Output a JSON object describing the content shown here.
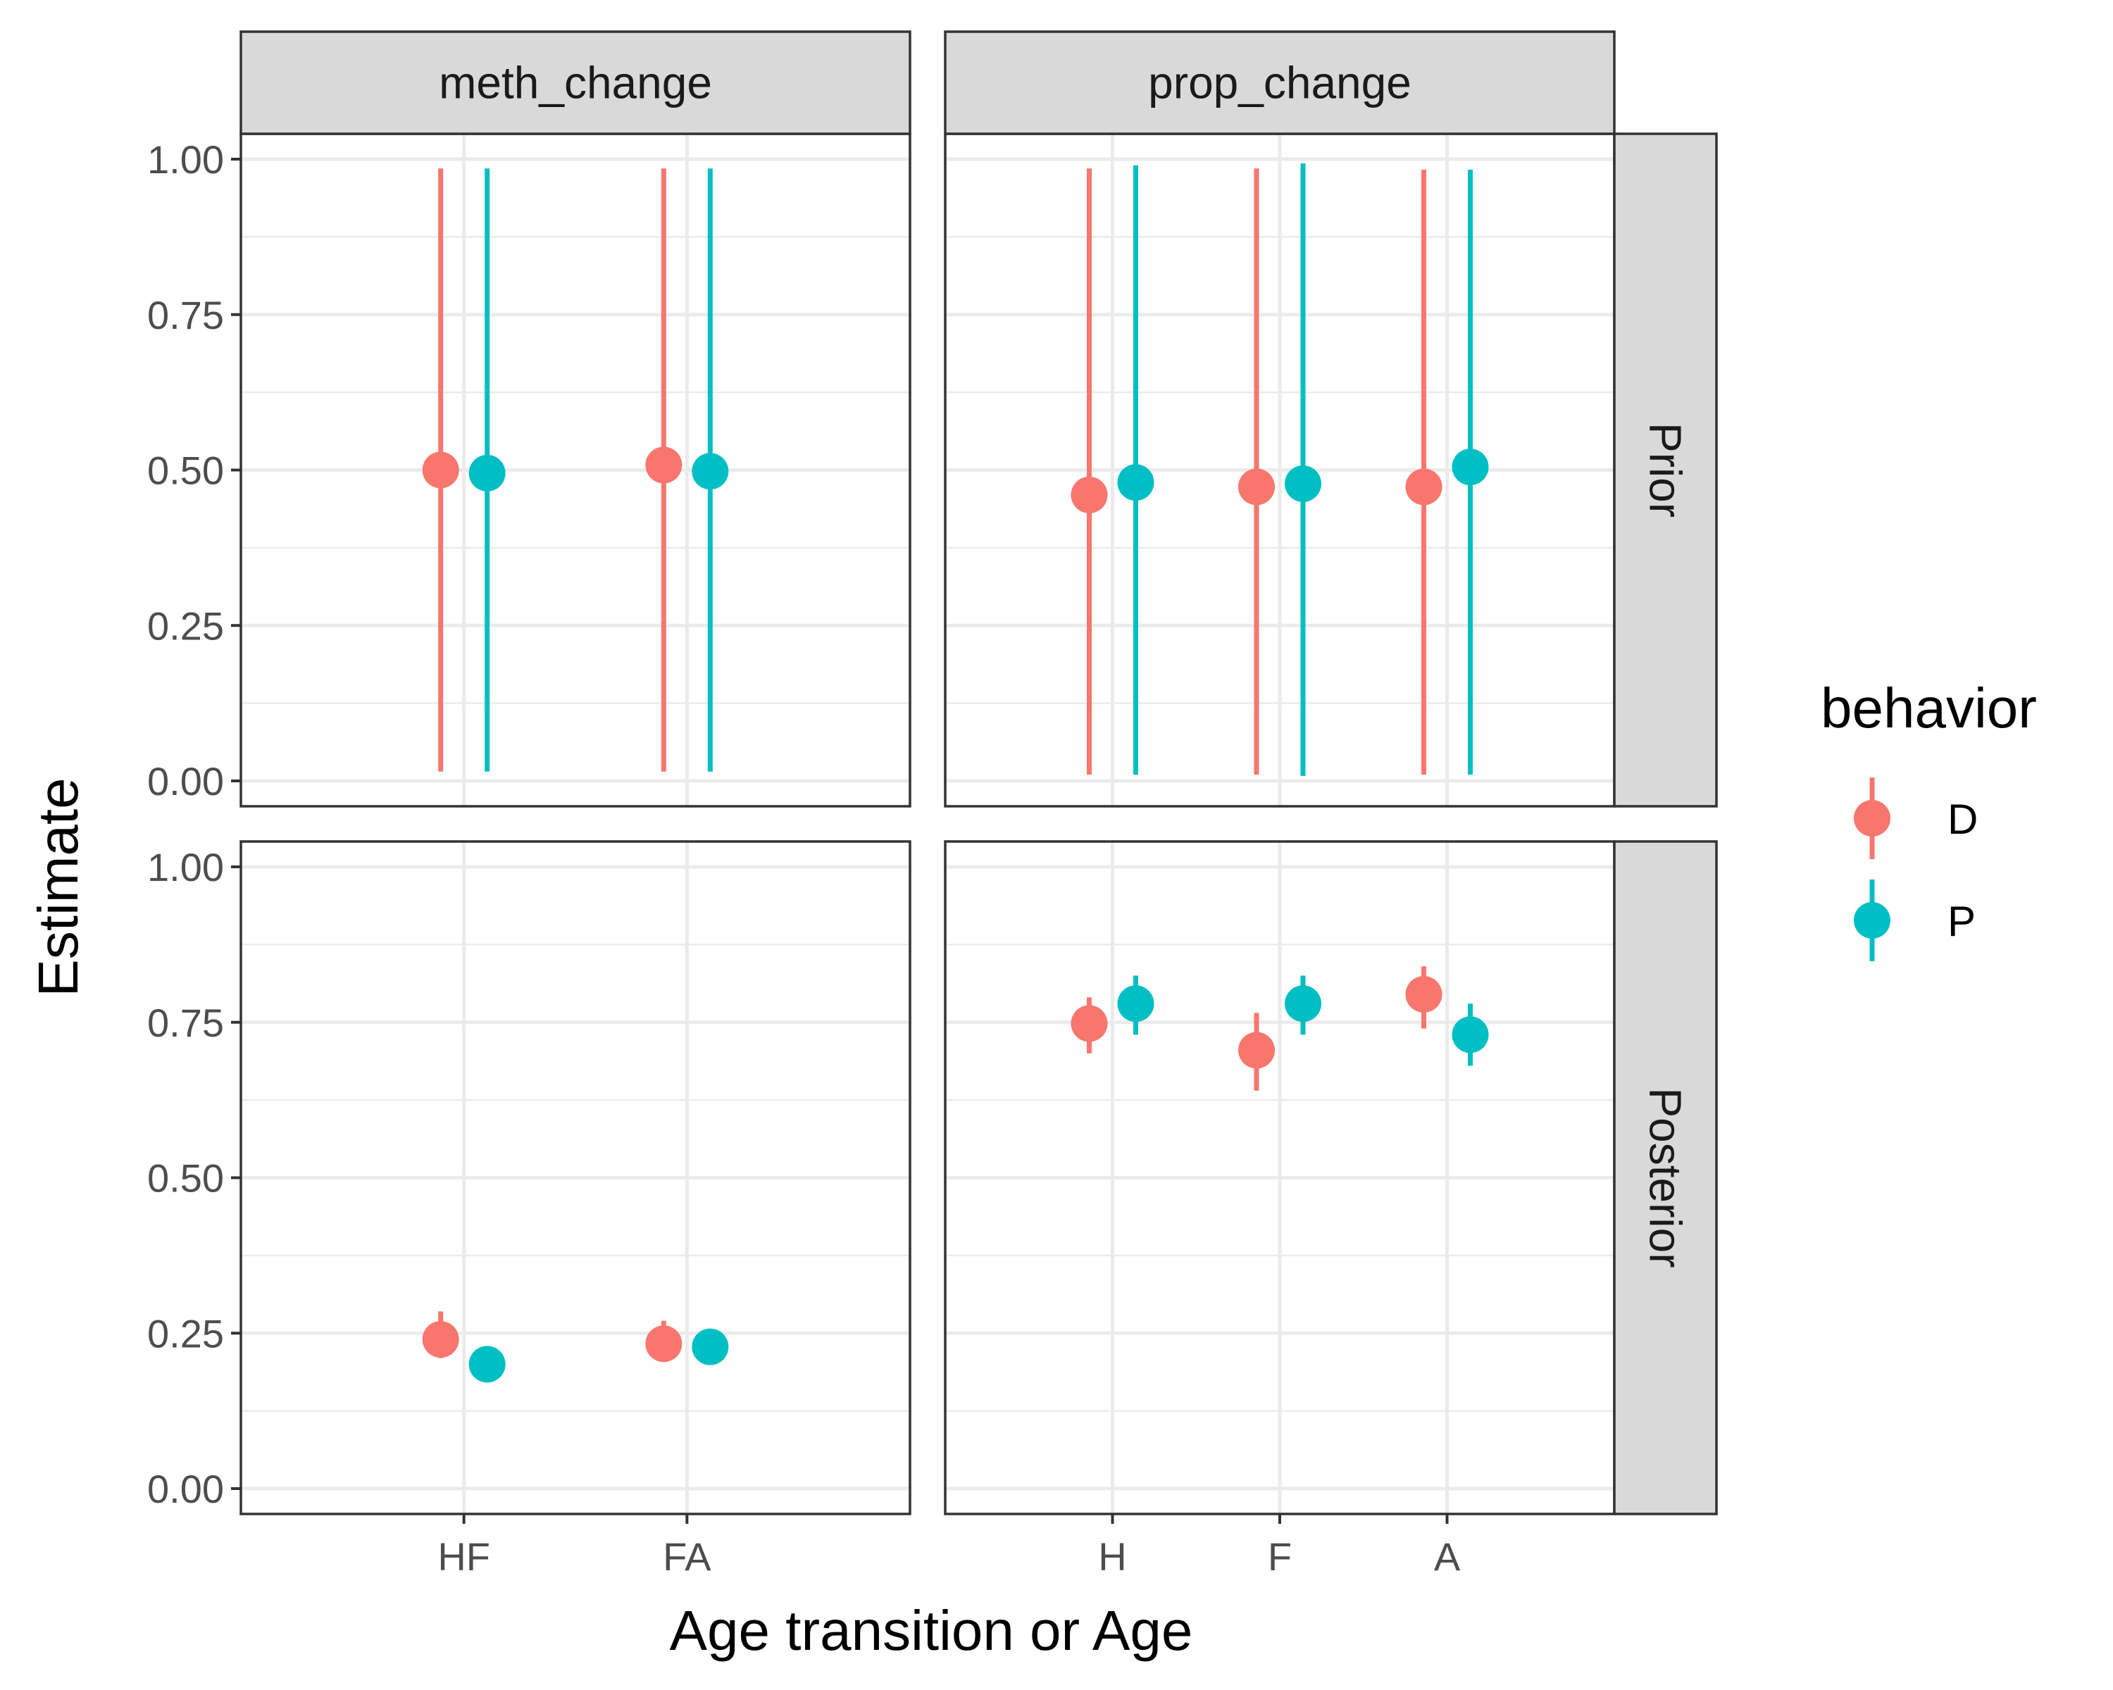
{
  "chart_data": {
    "type": "pointrange",
    "xlabel": "Age transition or Age",
    "ylabel": "Estimate",
    "ylim": [
      0,
      1
    ],
    "yticks": [
      "0.00",
      "0.25",
      "0.50",
      "0.75",
      "1.00"
    ],
    "grid": true,
    "legend": {
      "title": "behavior",
      "placement": "right",
      "entries": [
        {
          "name": "D",
          "color": "#F8766D"
        },
        {
          "name": "P",
          "color": "#00BFC4"
        }
      ]
    },
    "columns": [
      {
        "label": "meth_change",
        "categories": [
          "HF",
          "FA"
        ]
      },
      {
        "label": "prop_change",
        "categories": [
          "H",
          "F",
          "A"
        ]
      }
    ],
    "rows": [
      {
        "label": "Prior"
      },
      {
        "label": "Posterior"
      }
    ],
    "panels": [
      {
        "column": "meth_change",
        "row": "Prior",
        "points": [
          {
            "category": "HF",
            "behavior": "D",
            "estimate": 0.5,
            "lower": 0.015,
            "upper": 0.985
          },
          {
            "category": "HF",
            "behavior": "P",
            "estimate": 0.495,
            "lower": 0.015,
            "upper": 0.985
          },
          {
            "category": "FA",
            "behavior": "D",
            "estimate": 0.508,
            "lower": 0.015,
            "upper": 0.985
          },
          {
            "category": "FA",
            "behavior": "P",
            "estimate": 0.498,
            "lower": 0.015,
            "upper": 0.985
          }
        ]
      },
      {
        "column": "prop_change",
        "row": "Prior",
        "points": [
          {
            "category": "H",
            "behavior": "D",
            "estimate": 0.46,
            "lower": 0.01,
            "upper": 0.985
          },
          {
            "category": "H",
            "behavior": "P",
            "estimate": 0.48,
            "lower": 0.01,
            "upper": 0.99
          },
          {
            "category": "F",
            "behavior": "D",
            "estimate": 0.473,
            "lower": 0.01,
            "upper": 0.985
          },
          {
            "category": "F",
            "behavior": "P",
            "estimate": 0.478,
            "lower": 0.008,
            "upper": 0.993
          },
          {
            "category": "A",
            "behavior": "D",
            "estimate": 0.473,
            "lower": 0.01,
            "upper": 0.983
          },
          {
            "category": "A",
            "behavior": "P",
            "estimate": 0.505,
            "lower": 0.01,
            "upper": 0.983
          }
        ]
      },
      {
        "column": "meth_change",
        "row": "Posterior",
        "points": [
          {
            "category": "HF",
            "behavior": "D",
            "estimate": 0.24,
            "lower": 0.21,
            "upper": 0.285
          },
          {
            "category": "HF",
            "behavior": "P",
            "estimate": 0.2,
            "lower": 0.185,
            "upper": 0.215
          },
          {
            "category": "FA",
            "behavior": "D",
            "estimate": 0.233,
            "lower": 0.21,
            "upper": 0.27
          },
          {
            "category": "FA",
            "behavior": "P",
            "estimate": 0.228,
            "lower": 0.215,
            "upper": 0.245
          }
        ]
      },
      {
        "column": "prop_change",
        "row": "Posterior",
        "points": [
          {
            "category": "H",
            "behavior": "D",
            "estimate": 0.748,
            "lower": 0.7,
            "upper": 0.79
          },
          {
            "category": "H",
            "behavior": "P",
            "estimate": 0.78,
            "lower": 0.73,
            "upper": 0.825
          },
          {
            "category": "F",
            "behavior": "D",
            "estimate": 0.705,
            "lower": 0.64,
            "upper": 0.765
          },
          {
            "category": "F",
            "behavior": "P",
            "estimate": 0.78,
            "lower": 0.73,
            "upper": 0.825
          },
          {
            "category": "A",
            "behavior": "D",
            "estimate": 0.795,
            "lower": 0.74,
            "upper": 0.84
          },
          {
            "category": "A",
            "behavior": "P",
            "estimate": 0.73,
            "lower": 0.68,
            "upper": 0.78
          }
        ]
      }
    ]
  }
}
